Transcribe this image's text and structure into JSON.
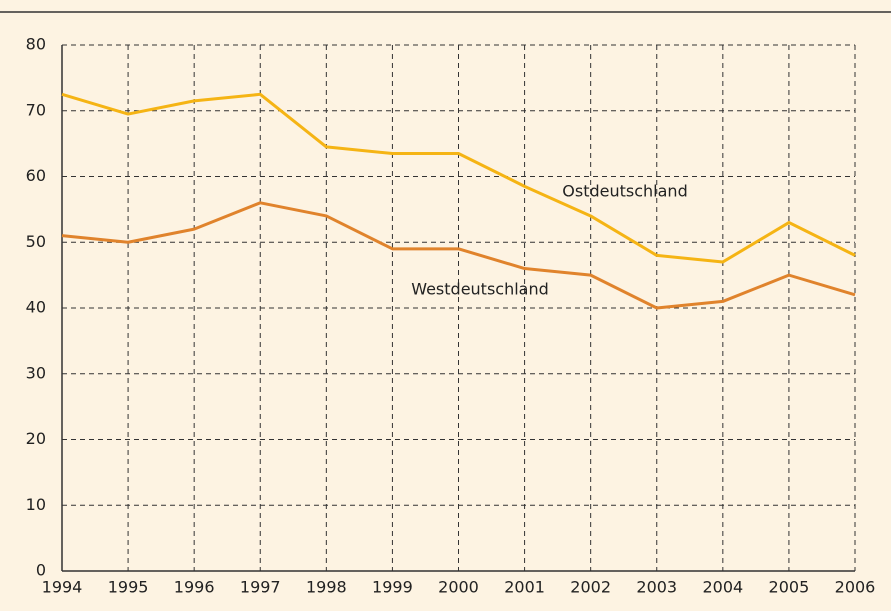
{
  "chart_data": {
    "type": "line",
    "x": [
      1994,
      1995,
      1996,
      1997,
      1998,
      1999,
      2000,
      2001,
      2002,
      2003,
      2004,
      2005,
      2006
    ],
    "series": [
      {
        "name": "Ostdeutschland",
        "color": "#f5b414",
        "values": [
          72.5,
          69.5,
          71.5,
          72.5,
          64.5,
          63.5,
          63.5,
          58.5,
          54,
          48,
          47,
          53,
          48
        ]
      },
      {
        "name": "Westdeutschland",
        "color": "#e0832c",
        "values": [
          51,
          50,
          52,
          56,
          54,
          49,
          49,
          46,
          45,
          40,
          41,
          45,
          42
        ]
      }
    ],
    "xlim": [
      1994,
      2006
    ],
    "xticks": [
      1994,
      1995,
      1996,
      1997,
      1998,
      1999,
      2000,
      2001,
      2002,
      2003,
      2004,
      2005,
      2006
    ],
    "ylim": [
      0,
      80
    ],
    "yticks": [
      0,
      10,
      20,
      30,
      40,
      50,
      60,
      70,
      80
    ],
    "grid": true
  }
}
